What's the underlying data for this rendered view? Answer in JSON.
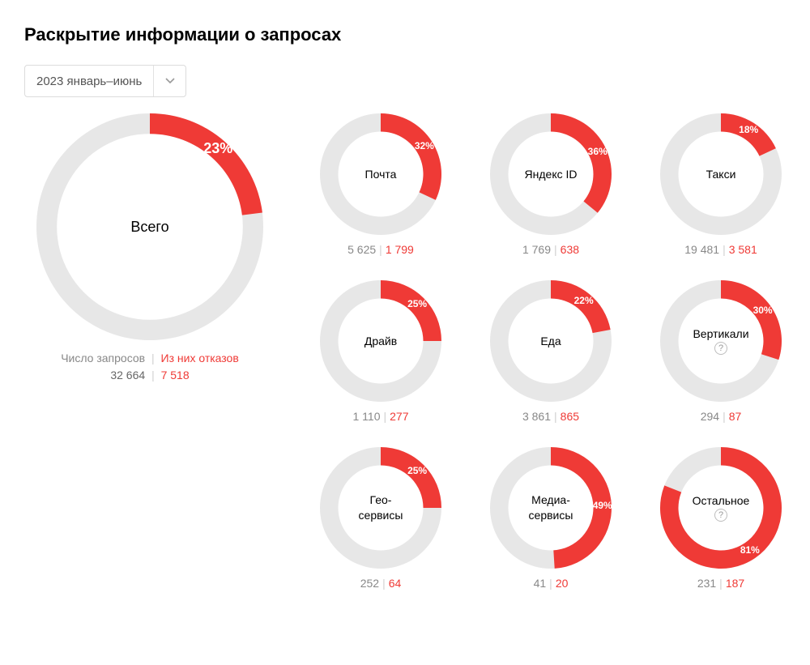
{
  "title": "Раскрытие информации о запросах",
  "period": {
    "selected": "2023 январь–июнь"
  },
  "colors": {
    "track": "#e7e7e7",
    "accent": "#ef3a36",
    "grey_text": "#888888",
    "separator": "#d0d0d0",
    "background": "#ffffff",
    "pct_text": "#ffffff"
  },
  "big": {
    "ring_thickness_ratio": 0.18,
    "outer_radius": 140,
    "label": "Всего",
    "percent": 23,
    "percent_text": "23%",
    "requests_label": "Число запросов",
    "refusals_label": "Из них отказов",
    "requests": "32 664",
    "refusals": "7 518"
  },
  "small_ring": {
    "outer_radius": 75,
    "thickness_ratio": 0.3
  },
  "cells": [
    {
      "label": "Почта",
      "percent": 32,
      "percent_text": "32%",
      "requests": "5 625",
      "refusals": "1 799",
      "help": false
    },
    {
      "label": "Яндекс ID",
      "percent": 36,
      "percent_text": "36%",
      "requests": "1 769",
      "refusals": "638",
      "help": false
    },
    {
      "label": "Такси",
      "percent": 18,
      "percent_text": "18%",
      "requests": "19 481",
      "refusals": "3 581",
      "help": false
    },
    {
      "label": "Драйв",
      "percent": 25,
      "percent_text": "25%",
      "requests": "1 110",
      "refusals": "277",
      "help": false
    },
    {
      "label": "Еда",
      "percent": 22,
      "percent_text": "22%",
      "requests": "3 861",
      "refusals": "865",
      "help": false
    },
    {
      "label": "Вертикали",
      "percent": 30,
      "percent_text": "30%",
      "requests": "294",
      "refusals": "87",
      "help": true
    },
    {
      "label": "Гео-\nсервисы",
      "percent": 25,
      "percent_text": "25%",
      "requests": "252",
      "refusals": "64",
      "help": false
    },
    {
      "label": "Медиа-\nсервисы",
      "percent": 49,
      "percent_text": "49%",
      "requests": "41",
      "refusals": "20",
      "help": false
    },
    {
      "label": "Остальное",
      "percent": 81,
      "percent_text": "81%",
      "requests": "231",
      "refusals": "187",
      "help": true
    }
  ]
}
